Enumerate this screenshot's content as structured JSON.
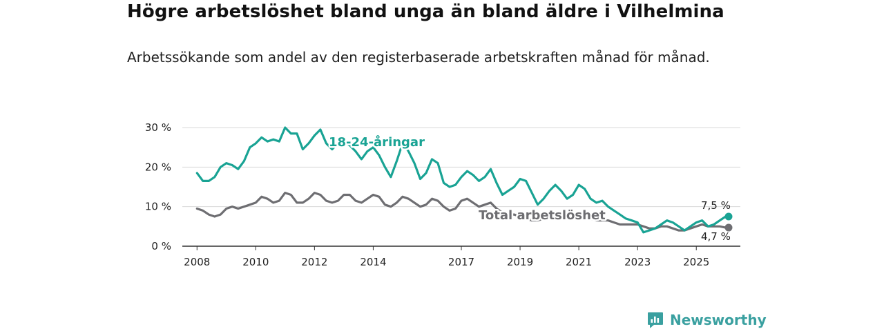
{
  "title": "Högre arbetslöshet bland unga än bland äldre i Vilhelmina",
  "subtitle": "Arbetssökande som andel av den registerbaserade arbetskraften månad för månad.",
  "brand": {
    "name": "Newsworthy",
    "icon": "newsworthy-logo-icon"
  },
  "colors": {
    "youth": "#19a394",
    "total": "#6e6e72",
    "grid": "#d9d9d9",
    "axis": "#333333"
  },
  "chart_data": {
    "type": "line",
    "title": "Högre arbetslöshet bland unga än bland äldre i Vilhelmina",
    "xlabel": "",
    "ylabel": "",
    "xlim": [
      2007.5,
      2026.5
    ],
    "ylim": [
      0,
      30
    ],
    "y_ticks": [
      0,
      10,
      20,
      30
    ],
    "y_tick_labels": [
      "0 %",
      "10 %",
      "20 %",
      "30 %"
    ],
    "x_ticks": [
      2008,
      2010,
      2012,
      2014,
      2017,
      2019,
      2021,
      2023,
      2025
    ],
    "x_tick_labels": [
      "2008",
      "2010",
      "2012",
      "2014",
      "2017",
      "2019",
      "2021",
      "2023",
      "2025"
    ],
    "grid": true,
    "series": [
      {
        "name": "18-24-åringar",
        "label": "18-24-åringar",
        "color": "#19a394",
        "end_label": "7,5 %",
        "x": [
          2008.0,
          2008.2,
          2008.4,
          2008.6,
          2008.8,
          2009.0,
          2009.2,
          2009.4,
          2009.6,
          2009.8,
          2010.0,
          2010.2,
          2010.4,
          2010.6,
          2010.8,
          2011.0,
          2011.2,
          2011.4,
          2011.6,
          2011.8,
          2012.0,
          2012.2,
          2012.4,
          2012.6,
          2012.8,
          2013.0,
          2013.2,
          2013.4,
          2013.6,
          2013.8,
          2014.0,
          2014.2,
          2014.4,
          2014.6,
          2014.8,
          2015.0,
          2015.2,
          2015.4,
          2015.6,
          2015.8,
          2016.0,
          2016.2,
          2016.4,
          2016.6,
          2016.8,
          2017.0,
          2017.2,
          2017.4,
          2017.6,
          2017.8,
          2018.0,
          2018.2,
          2018.4,
          2018.6,
          2018.8,
          2019.0,
          2019.2,
          2019.4,
          2019.6,
          2019.8,
          2020.0,
          2020.2,
          2020.4,
          2020.6,
          2020.8,
          2021.0,
          2021.2,
          2021.4,
          2021.6,
          2021.8,
          2022.0,
          2022.2,
          2022.4,
          2022.6,
          2022.8,
          2023.0,
          2023.2,
          2023.4,
          2023.6,
          2023.8,
          2024.0,
          2024.2,
          2024.4,
          2024.6,
          2024.8,
          2025.0,
          2025.2,
          2025.4,
          2025.6,
          2025.8,
          2026.0,
          2026.1
        ],
        "values": [
          18.5,
          16.5,
          16.5,
          17.5,
          20.0,
          21.0,
          20.5,
          19.5,
          21.5,
          25.0,
          26.0,
          27.5,
          26.5,
          27.0,
          26.5,
          30.0,
          28.5,
          28.5,
          24.5,
          26.0,
          28.0,
          29.5,
          26.0,
          24.5,
          26.0,
          26.5,
          25.5,
          24.0,
          22.0,
          24.0,
          25.0,
          23.0,
          20.0,
          17.5,
          21.5,
          26.0,
          24.0,
          21.0,
          17.0,
          18.5,
          22.0,
          21.0,
          16.0,
          15.0,
          15.5,
          17.5,
          19.0,
          18.0,
          16.5,
          17.5,
          19.5,
          16.0,
          13.0,
          14.0,
          15.0,
          17.0,
          16.5,
          13.5,
          10.5,
          12.0,
          14.0,
          15.5,
          14.0,
          12.0,
          13.0,
          15.5,
          14.5,
          12.0,
          11.0,
          11.5,
          10.0,
          9.0,
          8.0,
          7.0,
          6.5,
          6.0,
          3.5,
          4.0,
          4.5,
          5.5,
          6.5,
          6.0,
          5.0,
          4.0,
          5.0,
          6.0,
          6.5,
          5.0,
          5.5,
          6.5,
          7.5,
          7.5
        ]
      },
      {
        "name": "Total arbetslöshet",
        "label": "Total arbetslöshet",
        "color": "#6e6e72",
        "end_label": "4,7 %",
        "x": [
          2008.0,
          2008.2,
          2008.4,
          2008.6,
          2008.8,
          2009.0,
          2009.2,
          2009.4,
          2009.6,
          2009.8,
          2010.0,
          2010.2,
          2010.4,
          2010.6,
          2010.8,
          2011.0,
          2011.2,
          2011.4,
          2011.6,
          2011.8,
          2012.0,
          2012.2,
          2012.4,
          2012.6,
          2012.8,
          2013.0,
          2013.2,
          2013.4,
          2013.6,
          2013.8,
          2014.0,
          2014.2,
          2014.4,
          2014.6,
          2014.8,
          2015.0,
          2015.2,
          2015.4,
          2015.6,
          2015.8,
          2016.0,
          2016.2,
          2016.4,
          2016.6,
          2016.8,
          2017.0,
          2017.2,
          2017.4,
          2017.6,
          2017.8,
          2018.0,
          2018.2,
          2018.4,
          2018.6,
          2018.8,
          2019.0,
          2019.2,
          2019.4,
          2019.6,
          2019.8,
          2020.0,
          2020.2,
          2020.4,
          2020.6,
          2020.8,
          2021.0,
          2021.2,
          2021.4,
          2021.6,
          2021.8,
          2022.0,
          2022.2,
          2022.4,
          2022.6,
          2022.8,
          2023.0,
          2023.2,
          2023.4,
          2023.6,
          2023.8,
          2024.0,
          2024.2,
          2024.4,
          2024.6,
          2024.8,
          2025.0,
          2025.2,
          2025.4,
          2025.6,
          2025.8,
          2026.0,
          2026.1
        ],
        "values": [
          9.5,
          9.0,
          8.0,
          7.5,
          8.0,
          9.5,
          10.0,
          9.5,
          10.0,
          10.5,
          11.0,
          12.5,
          12.0,
          11.0,
          11.5,
          13.5,
          13.0,
          11.0,
          11.0,
          12.0,
          13.5,
          13.0,
          11.5,
          11.0,
          11.5,
          13.0,
          13.0,
          11.5,
          11.0,
          12.0,
          13.0,
          12.5,
          10.5,
          10.0,
          11.0,
          12.5,
          12.0,
          11.0,
          10.0,
          10.5,
          12.0,
          11.5,
          10.0,
          9.0,
          9.5,
          11.5,
          12.0,
          11.0,
          10.0,
          10.5,
          11.0,
          9.5,
          8.5,
          8.0,
          8.0,
          7.5,
          7.0,
          6.5,
          6.5,
          7.0,
          7.5,
          8.0,
          7.5,
          7.0,
          7.0,
          7.5,
          7.5,
          7.0,
          6.5,
          6.5,
          6.5,
          6.0,
          5.5,
          5.5,
          5.5,
          5.5,
          5.0,
          4.5,
          4.5,
          5.0,
          5.0,
          4.5,
          4.0,
          4.0,
          4.5,
          5.0,
          5.5,
          5.0,
          5.0,
          5.0,
          4.7,
          4.7
        ]
      }
    ]
  }
}
